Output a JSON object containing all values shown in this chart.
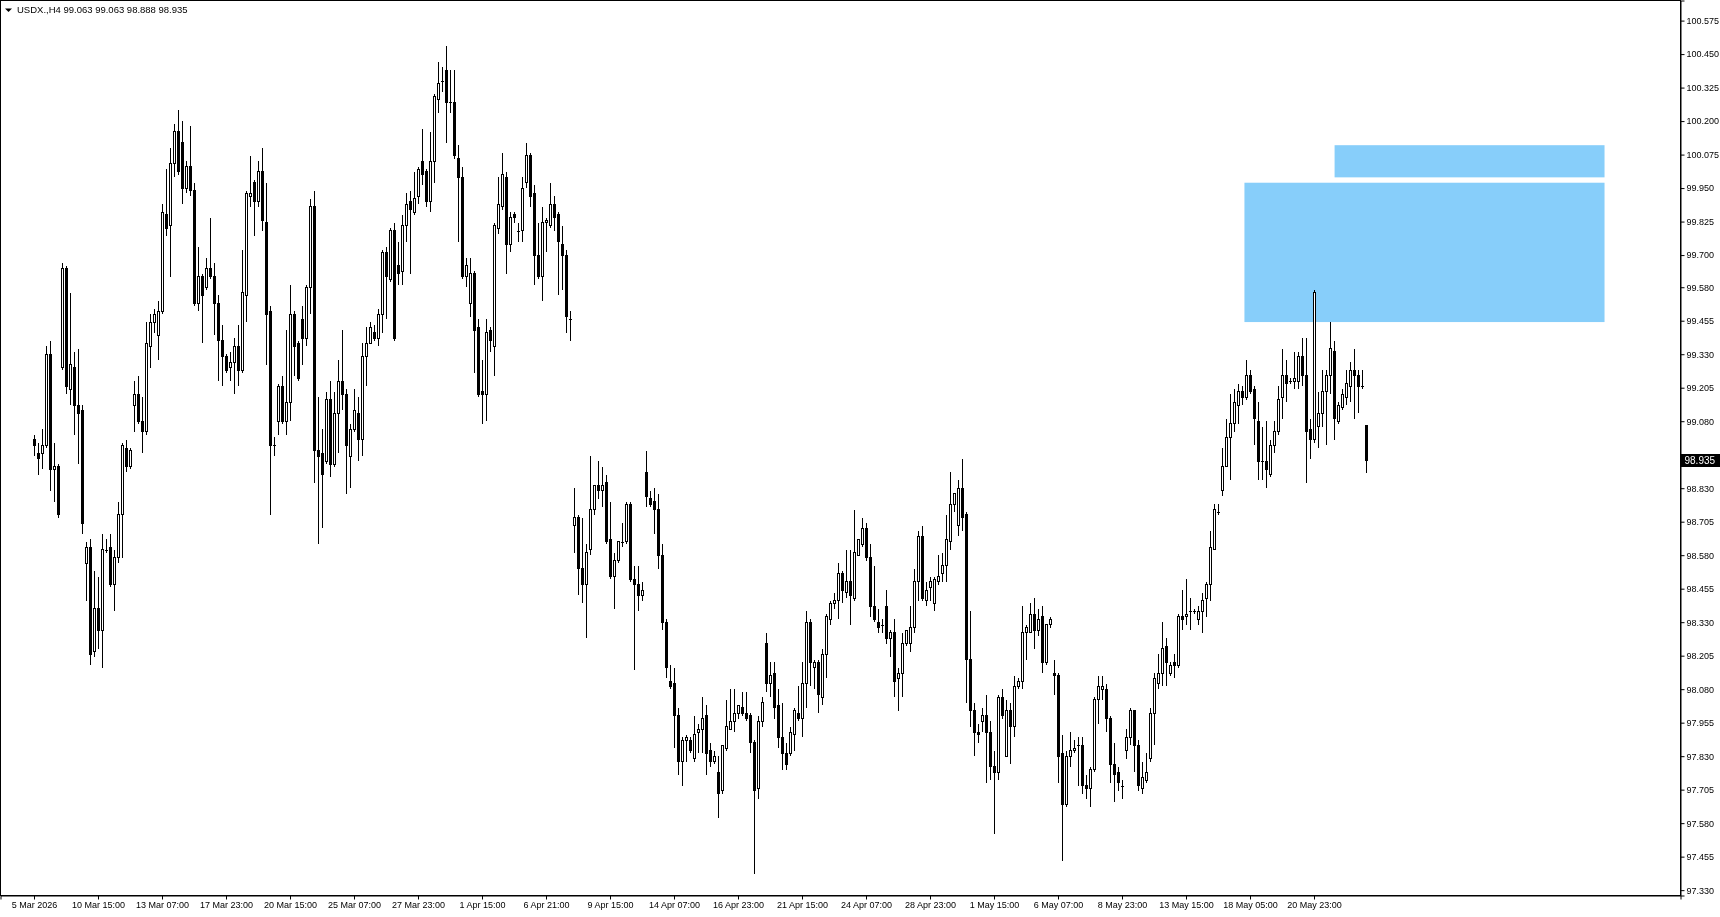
{
  "chart_data": {
    "type": "candlestick",
    "title": "USDX.,H4 99.063 99.063 98.888 98.935",
    "color": "#000000",
    "categories": [
      "5 Mar 2026",
      null,
      null,
      null,
      null,
      null,
      null,
      null,
      null,
      null,
      null,
      null,
      null,
      null,
      null,
      null,
      "10 Mar 15:00",
      null,
      null,
      null,
      null,
      null,
      null,
      null,
      null,
      null,
      null,
      null,
      null,
      null,
      null,
      null,
      "13 Mar 07:00",
      null,
      null,
      null,
      null,
      null,
      null,
      null,
      null,
      null,
      null,
      null,
      null,
      null,
      null,
      null,
      "17 Mar 23:00",
      null,
      null,
      null,
      null,
      null,
      null,
      null,
      null,
      null,
      null,
      null,
      null,
      null,
      null,
      null,
      "20 Mar 15:00",
      null,
      null,
      null,
      null,
      null,
      null,
      null,
      null,
      null,
      null,
      null,
      null,
      null,
      null,
      null,
      "25 Mar 07:00",
      null,
      null,
      null,
      null,
      null,
      null,
      null,
      null,
      null,
      null,
      null,
      null,
      null,
      null,
      null,
      "27 Mar 23:00",
      null,
      null,
      null,
      null,
      null,
      null,
      null,
      null,
      null,
      null,
      null,
      null,
      null,
      null,
      null,
      "1 Apr 15:00",
      null,
      null,
      null,
      null,
      null,
      null,
      null,
      null,
      null,
      null,
      null,
      null,
      null,
      null,
      null,
      "6 Apr 21:00",
      null,
      null,
      null,
      null,
      null,
      null,
      null,
      null,
      null,
      null,
      null,
      null,
      null,
      null,
      null,
      "9 Apr 15:00",
      null,
      null,
      null,
      null,
      null,
      null,
      null,
      null,
      null,
      null,
      null,
      null,
      null,
      null,
      null,
      "14 Apr 07:00",
      null,
      null,
      null,
      null,
      null,
      null,
      null,
      null,
      null,
      null,
      null,
      null,
      null,
      null,
      null,
      "16 Apr 23:00",
      null,
      null,
      null,
      null,
      null,
      null,
      null,
      null,
      null,
      null,
      null,
      null,
      null,
      null,
      null,
      "21 Apr 15:00",
      null,
      null,
      null,
      null,
      null,
      null,
      null,
      null,
      null,
      null,
      null,
      null,
      null,
      null,
      null,
      "24 Apr 07:00",
      null,
      null,
      null,
      null,
      null,
      null,
      null,
      null,
      null,
      null,
      null,
      null,
      null,
      null,
      null,
      "28 Apr 23:00",
      null,
      null,
      null,
      null,
      null,
      null,
      null,
      null,
      null,
      null,
      null,
      null,
      null,
      null,
      null,
      "1 May 15:00",
      null,
      null,
      null,
      null,
      null,
      null,
      null,
      null,
      null,
      null,
      null,
      null,
      null,
      null,
      null,
      "6 May 07:00",
      null,
      null,
      null,
      null,
      null,
      null,
      null,
      null,
      null,
      null,
      null,
      null,
      null,
      null,
      null,
      "8 May 23:00",
      null,
      null,
      null,
      null,
      null,
      null,
      null,
      null,
      null,
      null,
      null,
      null,
      null,
      null,
      null,
      "13 May 15:00",
      null,
      null,
      null,
      null,
      null,
      null,
      null,
      null,
      null,
      null,
      null,
      null,
      null,
      null,
      null,
      "18 May 05:00",
      null,
      null,
      null,
      null,
      null,
      null,
      null,
      null,
      null,
      null,
      null,
      null,
      null,
      null,
      null,
      "20 May 23:00",
      null,
      null,
      null,
      null,
      null,
      null,
      null,
      null,
      null,
      null,
      null,
      null,
      null,
      null,
      null,
      null,
      null,
      null,
      null,
      null,
      null,
      null,
      null,
      null,
      null,
      null,
      null,
      null,
      null,
      null,
      null,
      null,
      null,
      null,
      null,
      null,
      null,
      null,
      null,
      null,
      null,
      null,
      null,
      null,
      null,
      null,
      null,
      null,
      null,
      null,
      null,
      null,
      null,
      null,
      null,
      null,
      null,
      null,
      null,
      null,
      null,
      null,
      null,
      null,
      null,
      null,
      null,
      null,
      null,
      null,
      null,
      null,
      null,
      null,
      null,
      null,
      null,
      null,
      null,
      null,
      null,
      null,
      null,
      null,
      null,
      null,
      null,
      null,
      null,
      null,
      null
    ],
    "ohlc": [
      [
        99.01,
        99.03,
        98.95,
        98.99
      ],
      [
        98.96,
        99.0,
        98.88,
        98.94
      ],
      [
        98.96,
        99.05,
        98.9,
        98.99
      ],
      [
        98.99,
        99.36,
        98.98,
        99.33
      ],
      [
        99.33,
        99.38,
        98.82,
        98.9
      ],
      [
        98.9,
        99.0,
        98.78,
        98.91
      ],
      [
        98.91,
        98.92,
        98.72,
        98.73
      ],
      [
        99.28,
        99.67,
        99.27,
        99.65
      ],
      [
        99.65,
        99.66,
        99.18,
        99.21
      ],
      [
        99.2,
        99.56,
        99.14,
        99.29
      ],
      [
        99.28,
        99.34,
        99.03,
        99.14
      ],
      [
        99.14,
        99.35,
        98.92,
        99.11
      ],
      [
        99.12,
        99.14,
        98.66,
        98.7
      ],
      [
        98.55,
        98.63,
        98.41,
        98.61
      ],
      [
        98.61,
        98.64,
        98.17,
        98.21
      ],
      [
        98.22,
        98.52,
        98.2,
        98.38
      ],
      [
        98.38,
        98.5,
        98.23,
        98.3
      ],
      [
        98.3,
        98.66,
        98.16,
        98.6
      ],
      [
        98.6,
        98.64,
        98.59,
        98.6
      ],
      [
        98.61,
        98.66,
        98.46,
        98.47
      ],
      [
        98.47,
        98.6,
        98.37,
        98.57
      ],
      [
        98.57,
        98.78,
        98.55,
        98.73
      ],
      [
        98.73,
        99.0,
        98.57,
        98.99
      ],
      [
        98.98,
        99.01,
        98.89,
        98.91
      ],
      [
        98.91,
        98.98,
        98.9,
        98.97
      ],
      [
        99.14,
        99.23,
        99.04,
        99.18
      ],
      [
        99.18,
        99.25,
        99.07,
        99.08
      ],
      [
        99.08,
        99.17,
        98.96,
        99.04
      ],
      [
        99.04,
        99.45,
        99.03,
        99.37
      ],
      [
        99.36,
        99.48,
        99.28,
        99.45
      ],
      [
        99.45,
        99.5,
        99.41,
        99.48
      ],
      [
        99.4,
        99.53,
        99.31,
        99.49
      ],
      [
        99.49,
        99.89,
        99.48,
        99.86
      ],
      [
        99.85,
        100.02,
        99.77,
        99.8
      ],
      [
        99.81,
        100.1,
        99.62,
        100.04
      ],
      [
        100.04,
        100.19,
        99.99,
        100.16
      ],
      [
        100.16,
        100.24,
        100.0,
        100.01
      ],
      [
        100.12,
        100.2,
        99.89,
        99.95
      ],
      [
        99.95,
        100.05,
        99.93,
        100.03
      ],
      [
        100.03,
        100.18,
        99.92,
        99.94
      ],
      [
        99.94,
        99.97,
        99.51,
        99.52
      ],
      [
        99.52,
        99.73,
        99.49,
        99.62
      ],
      [
        99.62,
        99.63,
        99.37,
        99.55
      ],
      [
        99.58,
        99.69,
        99.57,
        99.65
      ],
      [
        99.65,
        99.84,
        99.61,
        99.62
      ],
      [
        99.62,
        99.67,
        99.4,
        99.52
      ],
      [
        99.52,
        99.55,
        99.23,
        99.38
      ],
      [
        99.38,
        99.44,
        99.21,
        99.32
      ],
      [
        99.32,
        99.33,
        99.26,
        99.27
      ],
      [
        99.28,
        99.34,
        99.23,
        99.3
      ],
      [
        99.3,
        99.39,
        99.18,
        99.36
      ],
      [
        99.36,
        99.44,
        99.21,
        99.27
      ],
      [
        99.27,
        99.72,
        99.26,
        99.56
      ],
      [
        99.55,
        99.94,
        99.45,
        99.93
      ],
      [
        99.92,
        100.07,
        99.88,
        99.93
      ],
      [
        99.97,
        99.98,
        99.77,
        99.9
      ],
      [
        99.9,
        100.05,
        99.88,
        100.01
      ],
      [
        100.01,
        100.1,
        99.79,
        99.83
      ],
      [
        99.82,
        99.97,
        99.29,
        99.48
      ],
      [
        99.49,
        99.51,
        98.73,
        98.99
      ],
      [
        98.99,
        99.02,
        98.95,
        98.99
      ],
      [
        99.08,
        99.22,
        99.03,
        99.21
      ],
      [
        99.21,
        99.25,
        99.07,
        99.08
      ],
      [
        99.08,
        99.42,
        99.03,
        99.15
      ],
      [
        99.15,
        99.59,
        99.08,
        99.48
      ],
      [
        99.48,
        99.49,
        99.25,
        99.36
      ],
      [
        99.37,
        99.38,
        99.23,
        99.24
      ],
      [
        99.46,
        99.51,
        99.29,
        99.39
      ],
      [
        99.39,
        99.59,
        99.36,
        99.58
      ],
      [
        99.58,
        99.91,
        99.48,
        99.88
      ],
      [
        99.88,
        99.94,
        98.85,
        98.97
      ],
      [
        98.97,
        99.17,
        98.62,
        98.95
      ],
      [
        98.96,
        99.05,
        98.68,
        98.88
      ],
      [
        98.93,
        99.19,
        98.92,
        99.16
      ],
      [
        99.16,
        99.23,
        98.87,
        98.92
      ],
      [
        98.92,
        99.19,
        98.91,
        99.11
      ],
      [
        99.11,
        99.31,
        98.96,
        99.23
      ],
      [
        99.23,
        99.42,
        99.12,
        99.18
      ],
      [
        99.18,
        99.2,
        98.81,
        98.99
      ],
      [
        98.95,
        99.07,
        98.83,
        99.05
      ],
      [
        99.05,
        99.2,
        99.04,
        99.12
      ],
      [
        99.11,
        99.17,
        98.93,
        99.01
      ],
      [
        99.01,
        99.37,
        98.95,
        99.32
      ],
      [
        99.32,
        99.43,
        99.21,
        99.37
      ],
      [
        99.37,
        99.45,
        99.37,
        99.43
      ],
      [
        99.41,
        99.44,
        99.38,
        99.39
      ],
      [
        99.39,
        99.5,
        99.36,
        99.48
      ],
      [
        99.48,
        99.72,
        99.41,
        99.71
      ],
      [
        99.71,
        99.73,
        99.46,
        99.62
      ],
      [
        99.61,
        99.8,
        99.6,
        99.79
      ],
      [
        99.79,
        99.82,
        99.38,
        99.39
      ],
      [
        99.66,
        99.75,
        99.59,
        99.63
      ],
      [
        99.64,
        99.85,
        99.59,
        99.81
      ],
      [
        99.81,
        99.93,
        99.75,
        99.89
      ],
      [
        99.9,
        99.94,
        99.63,
        99.87
      ],
      [
        99.86,
        100.01,
        99.85,
        99.91
      ],
      [
        99.92,
        100.03,
        99.89,
        100.02
      ],
      [
        100.05,
        100.17,
        99.96,
        100.0
      ],
      [
        100.01,
        100.02,
        99.88,
        99.9
      ],
      [
        99.9,
        100.16,
        99.86,
        100.05
      ],
      [
        100.05,
        100.3,
        99.97,
        100.29
      ],
      [
        100.28,
        100.42,
        100.23,
        100.34
      ],
      [
        100.35,
        100.4,
        100.31,
        100.35
      ],
      [
        100.39,
        100.48,
        100.12,
        100.27
      ],
      [
        100.27,
        100.39,
        100.23,
        100.27
      ],
      [
        100.27,
        100.39,
        100.06,
        100.07
      ],
      [
        100.06,
        100.11,
        99.75,
        99.99
      ],
      [
        99.99,
        100.03,
        99.61,
        99.62
      ],
      [
        99.62,
        99.69,
        99.58,
        99.66
      ],
      [
        99.52,
        99.69,
        99.47,
        99.63
      ],
      [
        99.63,
        99.64,
        99.26,
        99.42
      ],
      [
        99.43,
        99.46,
        99.17,
        99.18
      ],
      [
        99.19,
        99.31,
        99.07,
        99.18
      ],
      [
        99.18,
        99.46,
        99.08,
        99.41
      ],
      [
        99.42,
        99.43,
        99.34,
        99.38
      ],
      [
        99.36,
        99.82,
        99.25,
        99.81
      ],
      [
        99.8,
        99.99,
        99.78,
        99.89
      ],
      [
        99.88,
        100.08,
        99.87,
        100.0
      ],
      [
        99.99,
        100.01,
        99.63,
        99.74
      ],
      [
        99.74,
        99.86,
        99.71,
        99.84
      ],
      [
        99.85,
        99.86,
        99.82,
        99.84
      ],
      [
        99.79,
        99.82,
        99.75,
        99.79
      ],
      [
        99.79,
        99.99,
        99.75,
        99.95
      ],
      [
        99.97,
        100.12,
        99.95,
        100.07
      ],
      [
        100.07,
        100.08,
        99.88,
        99.92
      ],
      [
        99.93,
        99.96,
        99.59,
        99.7
      ],
      [
        99.7,
        99.82,
        99.61,
        99.62
      ],
      [
        99.62,
        99.88,
        99.53,
        99.82
      ],
      [
        99.82,
        99.84,
        99.71,
        99.83
      ],
      [
        99.81,
        99.97,
        99.8,
        99.89
      ],
      [
        99.89,
        99.92,
        99.79,
        99.84
      ],
      [
        99.85,
        99.86,
        99.55,
        99.75
      ],
      [
        99.74,
        99.81,
        99.57,
        99.7
      ],
      [
        99.7,
        99.72,
        99.41,
        99.47
      ],
      [
        99.46,
        99.49,
        99.38,
        99.46
      ],
      [
        98.69,
        98.83,
        98.59,
        98.72
      ],
      [
        98.72,
        98.73,
        98.43,
        98.53
      ],
      [
        98.53,
        98.72,
        98.4,
        98.47
      ],
      [
        98.47,
        98.62,
        98.27,
        98.59
      ],
      [
        98.6,
        98.95,
        98.58,
        98.75
      ],
      [
        98.75,
        98.84,
        98.73,
        98.84
      ],
      [
        98.84,
        98.93,
        98.79,
        98.82
      ],
      [
        98.82,
        98.91,
        98.76,
        98.84
      ],
      [
        98.85,
        98.88,
        98.62,
        98.63
      ],
      [
        98.64,
        98.78,
        98.49,
        98.5
      ],
      [
        98.5,
        98.59,
        98.38,
        98.56
      ],
      [
        98.56,
        98.63,
        98.55,
        98.63
      ],
      [
        98.63,
        98.7,
        98.61,
        98.63
      ],
      [
        98.63,
        98.78,
        98.62,
        98.77
      ],
      [
        98.77,
        98.78,
        98.48,
        98.49
      ],
      [
        98.49,
        98.54,
        98.15,
        98.47
      ],
      [
        98.47,
        98.54,
        98.37,
        98.43
      ],
      [
        98.43,
        98.48,
        98.41,
        98.45
      ],
      [
        98.89,
        98.97,
        98.76,
        98.8
      ],
      [
        98.79,
        98.82,
        98.76,
        98.77
      ],
      [
        98.78,
        98.83,
        98.66,
        98.75
      ],
      [
        98.75,
        98.81,
        98.53,
        98.58
      ],
      [
        98.58,
        98.62,
        98.3,
        98.33
      ],
      [
        98.33,
        98.34,
        98.12,
        98.16
      ],
      [
        98.11,
        98.17,
        98.08,
        98.09
      ],
      [
        98.1,
        98.16,
        97.86,
        97.98
      ],
      [
        97.98,
        98.01,
        97.76,
        97.81
      ],
      [
        97.81,
        97.9,
        97.72,
        97.89
      ],
      [
        97.89,
        97.91,
        97.81,
        97.9
      ],
      [
        97.89,
        97.9,
        97.84,
        97.85
      ],
      [
        97.82,
        97.98,
        97.81,
        97.91
      ],
      [
        97.92,
        97.95,
        97.84,
        97.93
      ],
      [
        97.93,
        98.05,
        97.84,
        97.97
      ],
      [
        97.98,
        98.02,
        97.76,
        97.84
      ],
      [
        97.85,
        97.88,
        97.79,
        97.81
      ],
      [
        97.81,
        97.85,
        97.8,
        97.83
      ],
      [
        97.77,
        97.83,
        97.6,
        97.69
      ],
      [
        97.7,
        97.87,
        97.69,
        97.87
      ],
      [
        97.86,
        98.04,
        97.85,
        97.94
      ],
      [
        97.93,
        98.08,
        97.93,
        97.96
      ],
      [
        97.96,
        98.08,
        97.92,
        97.99
      ],
      [
        97.99,
        98.02,
        97.97,
        98.02
      ],
      [
        98.01,
        98.07,
        97.98,
        97.99
      ],
      [
        97.99,
        98.07,
        97.96,
        97.97
      ],
      [
        97.98,
        97.99,
        97.84,
        97.88
      ],
      [
        97.88,
        97.89,
        97.39,
        97.7
      ],
      [
        97.71,
        97.98,
        97.67,
        97.96
      ],
      [
        97.96,
        98.05,
        97.94,
        98.03
      ],
      [
        98.25,
        98.29,
        98.07,
        98.1
      ],
      [
        98.1,
        98.18,
        98.05,
        98.13
      ],
      [
        98.14,
        98.18,
        97.97,
        98.01
      ],
      [
        98.02,
        98.08,
        97.86,
        97.9
      ],
      [
        97.9,
        98.03,
        97.78,
        97.84
      ],
      [
        97.84,
        97.88,
        97.78,
        97.8
      ],
      [
        97.84,
        97.94,
        97.83,
        97.92
      ],
      [
        97.91,
        98.01,
        97.85,
        98.0
      ],
      [
        97.99,
        98.09,
        97.96,
        97.97
      ],
      [
        97.97,
        98.18,
        97.9,
        98.1
      ],
      [
        98.1,
        98.37,
        98.01,
        98.33
      ],
      [
        98.33,
        98.34,
        98.09,
        98.18
      ],
      [
        98.16,
        98.19,
        98.08,
        98.18
      ],
      [
        98.18,
        98.19,
        97.99,
        98.06
      ],
      [
        98.05,
        98.23,
        98.02,
        98.21
      ],
      [
        98.21,
        98.36,
        98.12,
        98.35
      ],
      [
        98.34,
        98.41,
        98.32,
        98.4
      ],
      [
        98.4,
        98.44,
        98.38,
        98.41
      ],
      [
        98.41,
        98.55,
        98.34,
        98.51
      ],
      [
        98.51,
        98.52,
        98.4,
        98.45
      ],
      [
        98.44,
        98.6,
        98.42,
        98.48
      ],
      [
        98.48,
        98.6,
        98.32,
        98.43
      ],
      [
        98.42,
        98.75,
        98.41,
        98.59
      ],
      [
        98.58,
        98.64,
        98.58,
        98.64
      ],
      [
        98.62,
        98.72,
        98.61,
        98.68
      ],
      [
        98.68,
        98.7,
        98.56,
        98.57
      ],
      [
        98.57,
        98.62,
        98.35,
        98.39
      ],
      [
        98.39,
        98.54,
        98.33,
        98.34
      ],
      [
        98.33,
        98.38,
        98.29,
        98.31
      ],
      [
        98.32,
        98.34,
        98.29,
        98.32
      ],
      [
        98.39,
        98.45,
        98.25,
        98.27
      ],
      [
        98.27,
        98.3,
        98.2,
        98.29
      ],
      [
        98.29,
        98.34,
        98.05,
        98.11
      ],
      [
        98.12,
        98.16,
        98.0,
        98.14
      ],
      [
        98.14,
        98.29,
        98.05,
        98.25
      ],
      [
        98.25,
        98.3,
        98.24,
        98.3
      ],
      [
        98.25,
        98.39,
        98.22,
        98.31
      ],
      [
        98.31,
        98.53,
        98.29,
        98.48
      ],
      [
        98.48,
        98.67,
        98.41,
        98.65
      ],
      [
        98.65,
        98.69,
        98.41,
        98.42
      ],
      [
        98.41,
        98.48,
        98.39,
        98.45
      ],
      [
        98.46,
        98.5,
        98.41,
        98.48
      ],
      [
        98.4,
        98.5,
        98.37,
        98.49
      ],
      [
        98.48,
        98.58,
        98.47,
        98.5
      ],
      [
        98.51,
        98.59,
        98.48,
        98.54
      ],
      [
        98.54,
        98.73,
        98.48,
        98.64
      ],
      [
        98.63,
        98.89,
        98.6,
        98.77
      ],
      [
        98.77,
        98.81,
        98.74,
        98.81
      ],
      [
        98.69,
        98.86,
        98.65,
        98.83
      ],
      [
        98.83,
        98.94,
        98.67,
        98.72
      ],
      [
        98.73,
        98.74,
        98.03,
        98.19
      ],
      [
        98.19,
        98.37,
        97.94,
        98.0
      ],
      [
        98.0,
        98.03,
        97.83,
        97.92
      ],
      [
        97.92,
        97.95,
        97.88,
        97.91
      ],
      [
        97.96,
        98.01,
        97.92,
        97.98
      ],
      [
        97.98,
        98.06,
        97.73,
        97.92
      ],
      [
        97.92,
        97.96,
        97.74,
        97.79
      ],
      [
        97.79,
        97.85,
        97.54,
        97.77
      ],
      [
        97.77,
        98.06,
        97.74,
        98.05
      ],
      [
        98.05,
        98.08,
        97.97,
        97.98
      ],
      [
        97.83,
        98.04,
        97.83,
        98.0
      ],
      [
        98.0,
        98.03,
        97.8,
        97.94
      ],
      [
        97.94,
        98.13,
        97.9,
        98.09
      ],
      [
        98.09,
        98.12,
        98.08,
        98.11
      ],
      [
        98.11,
        98.39,
        98.08,
        98.29
      ],
      [
        98.29,
        98.32,
        98.19,
        98.31
      ],
      [
        98.29,
        98.4,
        98.29,
        98.36
      ],
      [
        98.36,
        98.42,
        98.23,
        98.3
      ],
      [
        98.3,
        98.38,
        98.28,
        98.34
      ],
      [
        98.35,
        98.39,
        98.14,
        98.18
      ],
      [
        98.18,
        98.32,
        98.17,
        98.32
      ],
      [
        98.32,
        98.35,
        98.31,
        98.34
      ],
      [
        98.14,
        98.19,
        98.06,
        98.13
      ],
      [
        98.13,
        98.14,
        97.73,
        97.83
      ],
      [
        97.84,
        97.91,
        97.44,
        97.65
      ],
      [
        97.65,
        97.85,
        97.64,
        97.83
      ],
      [
        97.83,
        97.92,
        97.79,
        97.85
      ],
      [
        97.85,
        97.89,
        97.84,
        97.86
      ],
      [
        97.87,
        97.9,
        97.72,
        97.87
      ],
      [
        97.87,
        97.9,
        97.69,
        97.72
      ],
      [
        97.72,
        97.76,
        97.67,
        97.71
      ],
      [
        97.71,
        97.79,
        97.64,
        97.78
      ],
      [
        97.78,
        98.05,
        97.77,
        98.04
      ],
      [
        98.04,
        98.13,
        97.95,
        98.09
      ],
      [
        98.08,
        98.13,
        98.04,
        98.09
      ],
      [
        98.08,
        98.1,
        97.92,
        97.97
      ],
      [
        97.97,
        97.98,
        97.73,
        97.8
      ],
      [
        97.8,
        97.88,
        97.66,
        97.76
      ],
      [
        97.77,
        97.79,
        97.7,
        97.73
      ],
      [
        97.72,
        97.74,
        97.67,
        97.72
      ],
      [
        97.85,
        97.93,
        97.82,
        97.9
      ],
      [
        97.9,
        98.01,
        97.87,
        98.0
      ],
      [
        98.0,
        98.0,
        97.77,
        97.87
      ],
      [
        97.87,
        97.89,
        97.7,
        97.72
      ],
      [
        97.71,
        97.81,
        97.69,
        97.75
      ],
      [
        97.74,
        97.84,
        97.73,
        97.77
      ],
      [
        97.82,
        98.01,
        97.81,
        97.99
      ],
      [
        97.99,
        98.14,
        97.87,
        98.12
      ],
      [
        98.1,
        98.21,
        98.08,
        98.14
      ],
      [
        98.14,
        98.33,
        98.09,
        98.23
      ],
      [
        98.24,
        98.27,
        98.09,
        98.18
      ],
      [
        98.14,
        98.18,
        98.13,
        98.17
      ],
      [
        98.18,
        98.21,
        98.12,
        98.17
      ],
      [
        98.17,
        98.36,
        98.16,
        98.35
      ],
      [
        98.35,
        98.45,
        98.3,
        98.34
      ],
      [
        98.35,
        98.49,
        98.32,
        98.36
      ],
      [
        98.37,
        98.42,
        98.3,
        98.37
      ],
      [
        98.37,
        98.38,
        98.36,
        98.37
      ],
      [
        98.34,
        98.39,
        98.32,
        98.37
      ],
      [
        98.37,
        98.44,
        98.29,
        98.41
      ],
      [
        98.42,
        98.48,
        98.35,
        98.47
      ],
      [
        98.47,
        98.67,
        98.41,
        98.61
      ],
      [
        98.6,
        98.77,
        98.6,
        98.75
      ],
      [
        98.74,
        98.77,
        98.73,
        98.74
      ],
      [
        98.82,
        98.98,
        98.8,
        98.91
      ],
      [
        98.91,
        99.09,
        98.91,
        99.02
      ],
      [
        99.02,
        99.18,
        98.86,
        99.07
      ],
      [
        99.07,
        99.2,
        99.04,
        99.15
      ],
      [
        99.14,
        99.22,
        99.07,
        99.19
      ],
      [
        99.19,
        99.21,
        99.14,
        99.17
      ],
      [
        99.17,
        99.31,
        99.16,
        99.25
      ],
      [
        99.25,
        99.27,
        99.18,
        99.19
      ],
      [
        99.2,
        99.21,
        98.99,
        99.09
      ],
      [
        99.08,
        99.15,
        98.86,
        98.93
      ],
      [
        98.93,
        99.06,
        98.86,
        98.93
      ],
      [
        98.93,
        99.08,
        98.83,
        98.9
      ],
      [
        98.88,
        99.01,
        98.87,
        98.99
      ],
      [
        98.99,
        99.08,
        98.96,
        99.04
      ],
      [
        99.04,
        99.21,
        99.03,
        99.16
      ],
      [
        99.17,
        99.35,
        99.09,
        99.25
      ],
      [
        99.25,
        99.31,
        99.15,
        99.22
      ],
      [
        99.23,
        99.24,
        99.22,
        99.23
      ],
      [
        99.23,
        99.34,
        99.2,
        99.24
      ],
      [
        99.23,
        99.34,
        99.2,
        99.32
      ],
      [
        99.32,
        99.39,
        99.21,
        99.25
      ],
      [
        99.25,
        99.39,
        98.85,
        99.04
      ],
      [
        99.05,
        99.09,
        98.94,
        99.01
      ],
      [
        99.01,
        99.57,
        99.0,
        99.56
      ],
      [
        99.06,
        99.19,
        98.98,
        99.11
      ],
      [
        99.11,
        99.27,
        99.06,
        99.19
      ],
      [
        99.19,
        99.27,
        98.99,
        99.25
      ],
      [
        99.25,
        99.45,
        99.18,
        99.35
      ],
      [
        99.34,
        99.38,
        99.01,
        99.09
      ],
      [
        99.08,
        99.15,
        99.07,
        99.14
      ],
      [
        99.13,
        99.2,
        99.12,
        99.18
      ],
      [
        99.17,
        99.27,
        99.14,
        99.22
      ],
      [
        99.21,
        99.3,
        99.15,
        99.27
      ],
      [
        99.27,
        99.35,
        99.09,
        99.25
      ],
      [
        99.25,
        99.27,
        99.11,
        99.21
      ],
      [
        99.21,
        99.27,
        99.2,
        99.21
      ],
      [
        99.063,
        99.063,
        98.888,
        98.935
      ],
      null,
      null,
      null,
      null,
      null,
      null,
      null,
      null,
      null,
      null,
      null,
      null,
      null,
      null,
      null,
      null,
      null,
      null,
      null,
      null,
      null,
      null,
      null,
      null,
      null,
      null,
      null,
      null,
      null,
      null,
      null,
      null,
      null,
      null,
      null,
      null,
      null,
      null,
      null,
      null,
      null,
      null,
      null,
      null,
      null,
      null,
      null,
      null,
      null,
      null,
      null,
      null,
      null,
      null,
      null,
      null,
      null,
      null,
      null,
      null,
      null,
      null,
      null,
      null,
      null,
      null,
      null,
      null,
      null,
      null,
      null,
      null,
      null,
      null,
      null,
      null,
      null,
      null
    ],
    "ylim": [
      97.31,
      100.65
    ],
    "yticks": [
      {
        "value": 97.33,
        "label": "97.330"
      },
      {
        "value": 97.455,
        "label": "97.455"
      },
      {
        "value": 97.58,
        "label": "97.580"
      },
      {
        "value": 97.705,
        "label": "97.705"
      },
      {
        "value": 97.83,
        "label": "97.830"
      },
      {
        "value": 97.955,
        "label": "97.955"
      },
      {
        "value": 98.08,
        "label": "98.080"
      },
      {
        "value": 98.205,
        "label": "98.205"
      },
      {
        "value": 98.33,
        "label": "98.330"
      },
      {
        "value": 98.455,
        "label": "98.455"
      },
      {
        "value": 98.58,
        "label": "98.580"
      },
      {
        "value": 98.705,
        "label": "98.705"
      },
      {
        "value": 98.83,
        "label": "98.830"
      },
      {
        "value": 98.955,
        "label": null
      },
      {
        "value": 99.08,
        "label": "99.080"
      },
      {
        "value": 99.205,
        "label": "99.205"
      },
      {
        "value": 99.33,
        "label": "99.330"
      },
      {
        "value": 99.455,
        "label": "99.455"
      },
      {
        "value": 99.58,
        "label": "99.580"
      },
      {
        "value": 99.7,
        "label": "99.700"
      },
      {
        "value": 99.825,
        "label": "99.825"
      },
      {
        "value": 99.95,
        "label": "99.950"
      },
      {
        "value": 100.075,
        "label": "100.075"
      },
      {
        "value": 100.2,
        "label": "100.200"
      },
      {
        "value": 100.325,
        "label": "100.325"
      },
      {
        "value": 100.45,
        "label": "100.450"
      },
      {
        "value": 100.575,
        "label": "100.575"
      }
    ],
    "bands": [
      {
        "axis": "y",
        "from": 99.45,
        "to": 99.97,
        "color": "#87cefa"
      },
      {
        "axis": "y",
        "from": 99.99,
        "to": 100.11,
        "color": "#87cefa"
      }
    ],
    "annotations": [
      {
        "text": "98.935",
        "y": 98.935
      }
    ]
  }
}
